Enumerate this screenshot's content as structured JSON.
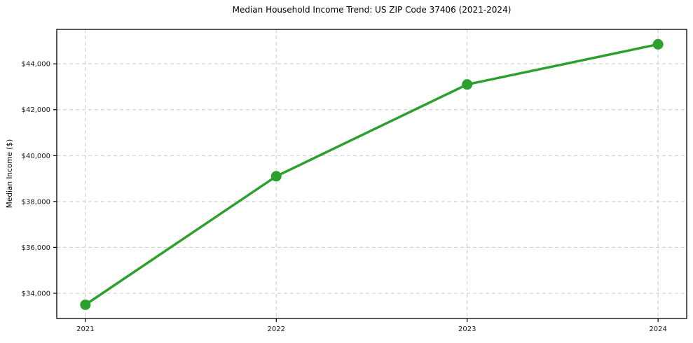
{
  "chart_data": {
    "type": "line",
    "title": "Median Household Income Trend: US ZIP Code 37406 (2021-2024)",
    "xlabel": "",
    "ylabel": "Median Income ($)",
    "x": [
      2021,
      2022,
      2023,
      2024
    ],
    "series": [
      {
        "name": "Median Household Income",
        "values": [
          33500,
          39100,
          43100,
          44850
        ],
        "color": "#2ca02c",
        "marker": "circle"
      }
    ],
    "xticks": {
      "values": [
        2021,
        2022,
        2023,
        2024
      ],
      "labels": [
        "2021",
        "2022",
        "2023",
        "2024"
      ]
    },
    "yticks": {
      "values": [
        34000,
        36000,
        38000,
        40000,
        42000,
        44000
      ],
      "labels": [
        "$34,000",
        "$36,000",
        "$38,000",
        "$40,000",
        "$42,000",
        "$44,000"
      ]
    },
    "xlim": [
      2020.85,
      2024.15
    ],
    "ylim": [
      32900,
      45500
    ],
    "grid": true,
    "grid_style": "dashed",
    "legend": "none",
    "colors": {
      "line": "#2ca02c",
      "grid": "#c9c9c9",
      "axis": "#000000",
      "text": "#1a1a1a",
      "background": "#ffffff"
    }
  }
}
